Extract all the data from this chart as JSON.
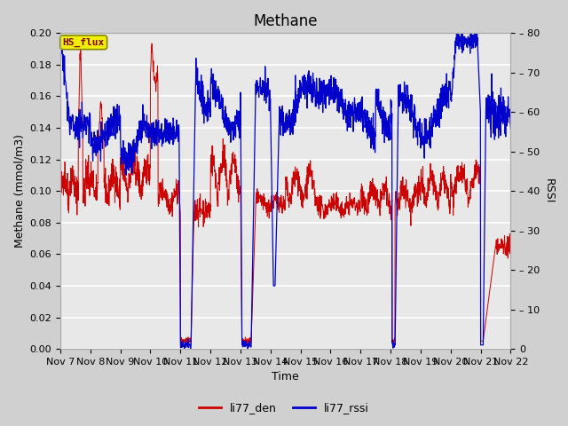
{
  "title": "Methane",
  "ylabel_left": "Methane (mmol/m3)",
  "ylabel_right": "RSSI",
  "xlabel": "Time",
  "xlim": [
    0,
    15
  ],
  "ylim_left": [
    0.0,
    0.2
  ],
  "ylim_right": [
    0,
    80
  ],
  "yticks_left": [
    0.0,
    0.02,
    0.04,
    0.06,
    0.08,
    0.1,
    0.12,
    0.14,
    0.16,
    0.18,
    0.2
  ],
  "yticks_right": [
    0,
    10,
    20,
    30,
    40,
    50,
    60,
    70,
    80
  ],
  "xtick_labels": [
    "Nov 7",
    "Nov 8",
    "Nov 9",
    "Nov 10",
    "Nov 11",
    "Nov 12",
    "Nov 13",
    "Nov 14",
    "Nov 15",
    "Nov 16",
    "Nov 17",
    "Nov 18",
    "Nov 19",
    "Nov 20",
    "Nov 21",
    "Nov 22"
  ],
  "xtick_positions": [
    0,
    1,
    2,
    3,
    4,
    5,
    6,
    7,
    8,
    9,
    10,
    11,
    12,
    13,
    14,
    15
  ],
  "legend_box_label": "HS_flux",
  "legend_box_facecolor": "#f0f000",
  "legend_box_edgecolor": "#888800",
  "legend_box_text_color": "#800000",
  "line_red_label": "li77_den",
  "line_blue_label": "li77_rssi",
  "line_red_color": "#cc0000",
  "line_blue_color": "#0000cc",
  "fig_bg_color": "#d0d0d0",
  "plot_bg_color": "#e8e8e8",
  "grid_color": "#ffffff",
  "title_fontsize": 12,
  "axis_label_fontsize": 9,
  "tick_fontsize": 8,
  "legend_fontsize": 9
}
